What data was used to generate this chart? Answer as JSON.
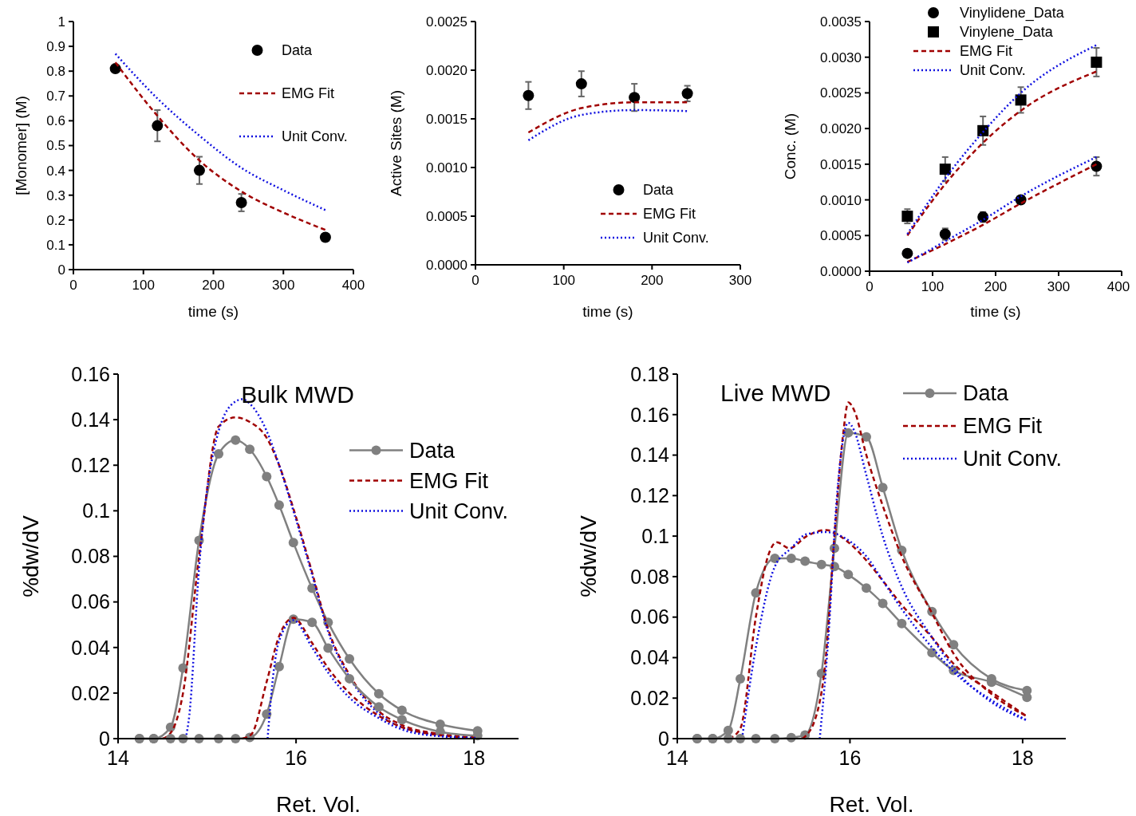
{
  "chart_data": [
    {
      "type": "scatter",
      "xlabel": "time (s)",
      "ylabel": "[Monomer] (M)",
      "xlim": [
        0,
        400
      ],
      "xticks": [
        0,
        100,
        200,
        300,
        400
      ],
      "ylim": [
        0,
        1
      ],
      "yticks": [
        0,
        0.1,
        0.2,
        0.3,
        0.4,
        0.5,
        0.6,
        0.7,
        0.8,
        0.9,
        1
      ],
      "legend": "top right",
      "series": [
        {
          "name": "Data",
          "color": "#000000",
          "marker": "circle",
          "x": [
            60,
            120,
            180,
            240,
            360
          ],
          "values": [
            0.81,
            0.58,
            0.4,
            0.27,
            0.13
          ],
          "errors": [
            0.01,
            0.063,
            0.055,
            0.035,
            0.01
          ]
        },
        {
          "name": "EMG Fit",
          "type": "line",
          "color": "#a00000",
          "marker": "none",
          "line_style": "dashed",
          "x": [
            60,
            120,
            180,
            240,
            300,
            360
          ],
          "values": [
            0.835,
            0.62,
            0.44,
            0.315,
            0.23,
            0.16
          ]
        },
        {
          "name": "Unit Conv.",
          "type": "line",
          "color": "#1010e0",
          "marker": "none",
          "line_style": "dotted",
          "x": [
            60,
            120,
            180,
            240,
            300,
            360
          ],
          "values": [
            0.87,
            0.69,
            0.54,
            0.41,
            0.32,
            0.24
          ]
        }
      ]
    },
    {
      "type": "scatter",
      "xlabel": "time (s)",
      "ylabel": "Active Sites (M)",
      "xlim": [
        0,
        300
      ],
      "xticks": [
        0,
        100,
        200,
        300
      ],
      "ylim": [
        0,
        0.0025
      ],
      "yticks": [
        {
          "value": 0,
          "label": "0.0000"
        },
        {
          "value": 0.0005,
          "label": "0.0005"
        },
        {
          "value": 0.001,
          "label": "0.0010"
        },
        {
          "value": 0.0015,
          "label": "0.0015"
        },
        {
          "value": 0.002,
          "label": "0.0020"
        },
        {
          "value": 0.0025,
          "label": "0.0025"
        }
      ],
      "legend": "bottom right",
      "series": [
        {
          "name": "Data",
          "color": "#000000",
          "marker": "circle",
          "x": [
            60,
            120,
            180,
            240
          ],
          "values": [
            0.00174,
            0.00186,
            0.00172,
            0.00176
          ],
          "errors": [
            0.00014,
            0.00013,
            0.00014,
            8e-05
          ]
        },
        {
          "name": "EMG Fit",
          "type": "line",
          "color": "#a00000",
          "marker": "none",
          "line_style": "dashed",
          "x": [
            60,
            120,
            180,
            240
          ],
          "values": [
            0.00136,
            0.00161,
            0.00167,
            0.00167
          ]
        },
        {
          "name": "Unit Conv.",
          "type": "line",
          "color": "#1010e0",
          "marker": "none",
          "line_style": "dotted",
          "x": [
            60,
            120,
            180,
            240
          ],
          "values": [
            0.00128,
            0.00154,
            0.00159,
            0.00158
          ]
        }
      ]
    },
    {
      "type": "scatter",
      "xlabel": "time (s)",
      "ylabel": "Conc. (M)",
      "xlim": [
        0,
        400
      ],
      "xticks": [
        0,
        100,
        200,
        300,
        400
      ],
      "ylim": [
        0,
        0.0035
      ],
      "yticks": [
        {
          "value": 0,
          "label": "0.0000"
        },
        {
          "value": 0.0005,
          "label": "0.0005"
        },
        {
          "value": 0.001,
          "label": "0.0010"
        },
        {
          "value": 0.0015,
          "label": "0.0015"
        },
        {
          "value": 0.002,
          "label": "0.0020"
        },
        {
          "value": 0.0025,
          "label": "0.0025"
        },
        {
          "value": 0.003,
          "label": "0.0030"
        },
        {
          "value": 0.0035,
          "label": "0.0035"
        }
      ],
      "legend": "top",
      "series": [
        {
          "name": "Vinylidene_Data",
          "color": "#000000",
          "marker": "circle",
          "x": [
            60,
            120,
            180,
            240,
            360
          ],
          "values": [
            0.00025,
            0.00052,
            0.00076,
            0.001,
            0.00147
          ],
          "errors": [
            4e-05,
            8e-05,
            7e-05,
            5e-05,
            0.00013
          ]
        },
        {
          "name": "Vinylene_Data",
          "color": "#000000",
          "marker": "square",
          "x": [
            60,
            120,
            180,
            240,
            360
          ],
          "values": [
            0.00077,
            0.00143,
            0.00197,
            0.0024,
            0.00293
          ],
          "errors": [
            0.0001,
            0.00017,
            0.0002,
            0.00018,
            0.0002
          ]
        },
        {
          "name": "EMG Fit",
          "type": "line",
          "color": "#a00000",
          "marker": "none",
          "line_style": "dashed",
          "x": [
            60,
            120,
            180,
            240,
            360
          ],
          "values": [
            0.0005,
            0.00122,
            0.0018,
            0.00225,
            0.0028
          ]
        },
        {
          "name": "Unit Conv.",
          "type": "line",
          "color": "#1010e0",
          "marker": "none",
          "line_style": "dotted",
          "x": [
            60,
            120,
            180,
            240,
            360
          ],
          "values": [
            0.00052,
            0.0013,
            0.00195,
            0.0025,
            0.00317
          ]
        },
        {
          "type": "line",
          "color": "#a00000",
          "marker": "none",
          "line_style": "dashed",
          "x": [
            60,
            120,
            180,
            240,
            360
          ],
          "values": [
            0.00013,
            0.00038,
            0.00065,
            0.00095,
            0.0015
          ]
        },
        {
          "type": "line",
          "color": "#1010e0",
          "marker": "none",
          "line_style": "dotted",
          "x": [
            60,
            120,
            180,
            240,
            360
          ],
          "values": [
            0.00012,
            0.00042,
            0.00072,
            0.00105,
            0.0016
          ]
        }
      ]
    },
    {
      "type": "line",
      "title": "Bulk MWD",
      "xlabel": "Ret. Vol.",
      "ylabel": "%dw/dV",
      "xlim": [
        14,
        18.5
      ],
      "xticks": [
        14,
        16,
        18
      ],
      "ylim": [
        0,
        0.16
      ],
      "yticks": [
        0,
        0.02,
        0.04,
        0.06,
        0.08,
        0.1,
        0.12,
        0.14,
        0.16
      ],
      "legend": "right",
      "series": [
        {
          "name": "Data",
          "color": "#808080",
          "marker": "circle",
          "line_style": "solid",
          "x": [
            14.24,
            14.4,
            14.59,
            14.73,
            14.91,
            15.13,
            15.32,
            15.48,
            15.67,
            15.81,
            15.97,
            16.18,
            16.36,
            16.6,
            16.93,
            17.19,
            17.62,
            18.04
          ],
          "values": [
            0,
            0,
            0.005,
            0.031,
            0.087,
            0.125,
            0.131,
            0.127,
            0.115,
            0.1025,
            0.086,
            0.066,
            0.051,
            0.035,
            0.0197,
            0.0124,
            0.0063,
            0.0034
          ]
        },
        {
          "name": "EMG Fit",
          "color": "#a00000",
          "marker": "none",
          "line_style": "dashed",
          "x": [
            14.5,
            14.6,
            14.73,
            14.91,
            15.13,
            15.32,
            15.48,
            15.67,
            15.81,
            15.97,
            16.18,
            16.36,
            16.6,
            16.93,
            17.19,
            17.62,
            18.04
          ],
          "values": [
            0,
            0.003,
            0.02,
            0.08,
            0.137,
            0.141,
            0.139,
            0.132,
            0.12,
            0.101,
            0.073,
            0.048,
            0.028,
            0.012,
            0.006,
            0.002,
            0.0005
          ]
        },
        {
          "name": "Unit Conv.",
          "color": "#1010e0",
          "marker": "none",
          "line_style": "dotted",
          "x": [
            14.76,
            14.8,
            14.91,
            15.13,
            15.32,
            15.4,
            15.48,
            15.67,
            15.81,
            15.97,
            16.18,
            16.36,
            16.6,
            16.93,
            17.19,
            17.62,
            18.04
          ],
          "values": [
            0,
            0.01,
            0.075,
            0.135,
            0.148,
            0.149,
            0.147,
            0.135,
            0.12,
            0.1,
            0.072,
            0.047,
            0.027,
            0.011,
            0.005,
            0.0015,
            0.0003
          ]
        },
        {
          "color": "#808080",
          "marker": "circle",
          "line_style": "solid",
          "x": [
            14.24,
            14.4,
            14.59,
            14.73,
            14.91,
            15.13,
            15.32,
            15.48,
            15.67,
            15.81,
            15.97,
            16.18,
            16.36,
            16.6,
            16.93,
            17.19,
            17.62,
            18.04
          ],
          "values": [
            0,
            0,
            0,
            0,
            0,
            0,
            0,
            0.0005,
            0.0108,
            0.0316,
            0.0524,
            0.051,
            0.0397,
            0.0263,
            0.0139,
            0.0083,
            0.003,
            0.0013
          ]
        },
        {
          "color": "#a00000",
          "marker": "none",
          "line_style": "dashed",
          "x": [
            15.4,
            15.5,
            15.67,
            15.81,
            15.97,
            16.18,
            16.36,
            16.6,
            16.93,
            17.19,
            17.62,
            18.04
          ],
          "values": [
            0,
            0.002,
            0.025,
            0.045,
            0.053,
            0.042,
            0.031,
            0.02,
            0.01,
            0.005,
            0.0015,
            0.0003
          ]
        },
        {
          "color": "#1010e0",
          "marker": "none",
          "line_style": "dotted",
          "x": [
            15.68,
            15.75,
            15.81,
            15.97,
            16.18,
            16.36,
            16.6,
            16.93,
            17.19,
            17.62,
            18.04
          ],
          "values": [
            0,
            0.03,
            0.043,
            0.052,
            0.04,
            0.029,
            0.018,
            0.009,
            0.004,
            0.001,
            0.0002
          ]
        }
      ]
    },
    {
      "type": "line",
      "title": "Live MWD",
      "xlabel": "Ret. Vol.",
      "ylabel": "%dw/dV",
      "xlim": [
        14,
        18.5
      ],
      "xticks": [
        14,
        16,
        18
      ],
      "ylim": [
        0,
        0.18
      ],
      "yticks": [
        0,
        0.02,
        0.04,
        0.06,
        0.08,
        0.1,
        0.12,
        0.14,
        0.16,
        0.18
      ],
      "legend": "top right",
      "series": [
        {
          "name": "Data",
          "color": "#808080",
          "marker": "circle",
          "line_style": "solid",
          "x": [
            14.23,
            14.41,
            14.59,
            14.73,
            14.91,
            15.13,
            15.32,
            15.48,
            15.67,
            15.82,
            15.98,
            16.19,
            16.38,
            16.6,
            16.95,
            17.2,
            17.64,
            18.05
          ],
          "values": [
            0,
            0,
            0.004,
            0.0295,
            0.072,
            0.089,
            0.089,
            0.0876,
            0.086,
            0.085,
            0.081,
            0.0743,
            0.0668,
            0.0568,
            0.0424,
            0.0337,
            0.0279,
            0.0204
          ]
        },
        {
          "name": "EMG Fit",
          "color": "#a00000",
          "marker": "none",
          "line_style": "dashed",
          "x": [
            14.6,
            14.73,
            14.91,
            15.05,
            15.15,
            15.3,
            15.5,
            15.72,
            15.98,
            16.19,
            16.38,
            16.6,
            16.95,
            17.2,
            17.64,
            18.05
          ],
          "values": [
            0,
            0.005,
            0.06,
            0.09,
            0.097,
            0.094,
            0.1,
            0.103,
            0.097,
            0.088,
            0.078,
            0.066,
            0.05,
            0.037,
            0.023,
            0.011
          ]
        },
        {
          "name": "Unit Conv.",
          "color": "#1010e0",
          "marker": "none",
          "line_style": "dotted",
          "x": [
            14.75,
            14.91,
            15.13,
            15.32,
            15.5,
            15.72,
            15.98,
            16.19,
            16.38,
            16.6,
            16.95,
            17.2,
            17.64,
            18.05
          ],
          "values": [
            0,
            0.045,
            0.085,
            0.094,
            0.101,
            0.102,
            0.098,
            0.09,
            0.078,
            0.064,
            0.045,
            0.033,
            0.019,
            0.009
          ]
        },
        {
          "color": "#808080",
          "marker": "circle",
          "line_style": "solid",
          "x": [
            14.23,
            14.41,
            14.59,
            14.73,
            14.91,
            15.13,
            15.32,
            15.48,
            15.67,
            15.82,
            15.98,
            16.19,
            16.38,
            16.6,
            16.95,
            17.2,
            17.64,
            18.05
          ],
          "values": [
            0,
            0,
            0,
            0,
            0,
            0,
            0.0005,
            0.0018,
            0.0322,
            0.094,
            0.151,
            0.149,
            0.124,
            0.093,
            0.0627,
            0.0464,
            0.0295,
            0.0237
          ]
        },
        {
          "color": "#a00000",
          "marker": "none",
          "line_style": "dashed",
          "x": [
            15.45,
            15.6,
            15.72,
            15.82,
            15.92,
            15.98,
            16.05,
            16.19,
            16.38,
            16.6,
            16.95,
            17.2,
            17.64,
            18.05
          ],
          "values": [
            0,
            0.01,
            0.04,
            0.1,
            0.15,
            0.166,
            0.162,
            0.14,
            0.115,
            0.09,
            0.062,
            0.042,
            0.022,
            0.011
          ]
        },
        {
          "color": "#1010e0",
          "marker": "none",
          "line_style": "dotted",
          "x": [
            15.65,
            15.75,
            15.85,
            15.98,
            16.05,
            16.19,
            16.38,
            16.6,
            16.95,
            17.2,
            17.64,
            18.05
          ],
          "values": [
            0,
            0.05,
            0.12,
            0.156,
            0.152,
            0.13,
            0.1,
            0.075,
            0.05,
            0.035,
            0.018,
            0.009
          ]
        }
      ]
    }
  ]
}
